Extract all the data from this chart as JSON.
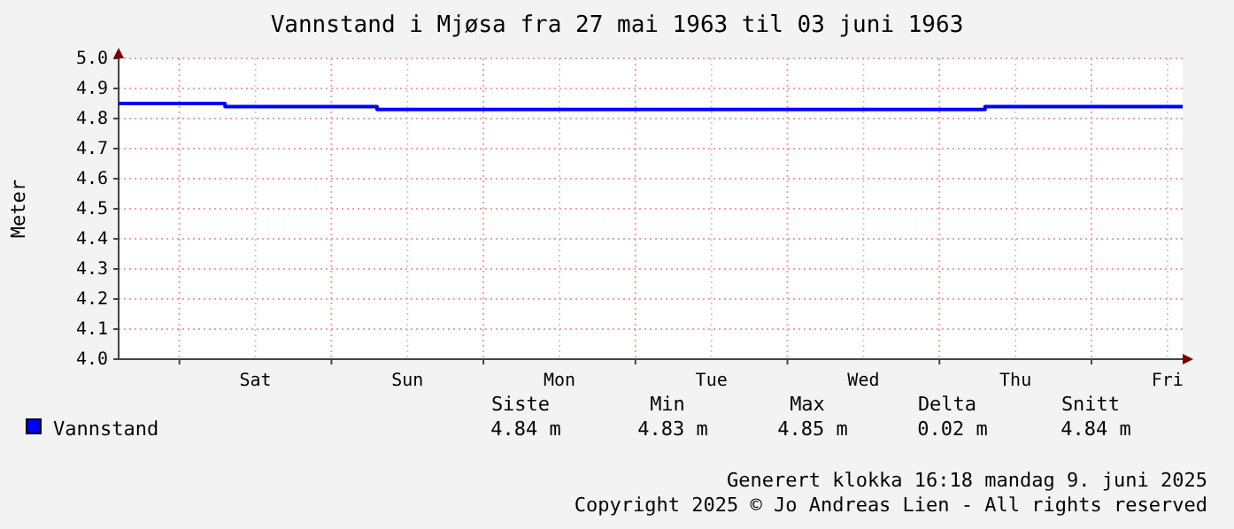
{
  "chart_data": {
    "type": "step",
    "title": "Vannstand i Mjøsa fra 27 mai 1963 til 03 juni 1963",
    "ylabel": "Meter",
    "categories": [
      null,
      null,
      null,
      null,
      null,
      null,
      null,
      null,
      null,
      "Sat",
      null,
      null,
      null,
      null,
      null,
      null,
      null,
      null,
      null,
      "Sun",
      null,
      null,
      null,
      null,
      null,
      null,
      null,
      null,
      null,
      "Mon",
      null,
      null,
      null,
      null,
      null,
      null,
      null,
      null,
      null,
      "Tue",
      null,
      null,
      null,
      null,
      null,
      null,
      null,
      null,
      null,
      "Wed",
      null,
      null,
      null,
      null,
      null,
      null,
      null,
      null,
      null,
      "Thu",
      null,
      null,
      null,
      null,
      null,
      null,
      null,
      null,
      null,
      "Fri",
      null
    ],
    "series": [
      {
        "name": "Vannstand",
        "color": "#0000ff",
        "values": [
          4.85,
          4.85,
          4.85,
          4.85,
          4.85,
          4.85,
          4.85,
          4.84,
          4.84,
          4.84,
          4.84,
          4.84,
          4.84,
          4.84,
          4.84,
          4.84,
          4.84,
          4.83,
          4.83,
          4.83,
          4.83,
          4.83,
          4.83,
          4.83,
          4.83,
          4.83,
          4.83,
          4.83,
          4.83,
          4.83,
          4.83,
          4.83,
          4.83,
          4.83,
          4.83,
          4.83,
          4.83,
          4.83,
          4.83,
          4.83,
          4.83,
          4.83,
          4.83,
          4.83,
          4.83,
          4.83,
          4.83,
          4.83,
          4.83,
          4.83,
          4.83,
          4.83,
          4.83,
          4.83,
          4.83,
          4.83,
          4.83,
          4.84,
          4.84,
          4.84,
          4.84,
          4.84,
          4.84,
          4.84,
          4.84,
          4.84,
          4.84,
          4.84,
          4.84,
          4.84,
          4.84
        ]
      }
    ],
    "ylim": [
      4.0,
      5.0
    ],
    "yticks": [
      {
        "value": 4.0,
        "label": "4.0"
      },
      {
        "value": 4.1,
        "label": "4.1"
      },
      {
        "value": 4.2,
        "label": "4.2"
      },
      {
        "value": 4.3,
        "label": "4.3"
      },
      {
        "value": 4.4,
        "label": "4.4"
      },
      {
        "value": 4.5,
        "label": "4.5"
      },
      {
        "value": 4.6,
        "label": "4.6"
      },
      {
        "value": 4.7,
        "label": "4.7"
      },
      {
        "value": 4.8,
        "label": "4.8"
      },
      {
        "value": 4.9,
        "label": "4.9"
      },
      {
        "value": 5.0,
        "label": "5.0"
      }
    ],
    "grid": true,
    "legend": "bottom left",
    "line_style": "solid",
    "marker": "none",
    "annotations": [
      "Siste",
      "Min",
      "Max",
      "Delta",
      "Snitt",
      "4.84 m",
      "4.83 m",
      "4.85 m",
      "0.02 m",
      "4.84 m",
      "Generert klokka 16:18 mandag 9. juni 2025",
      "Copyright 2025 © Jo Andreas Lien - All rights reserved"
    ]
  }
}
